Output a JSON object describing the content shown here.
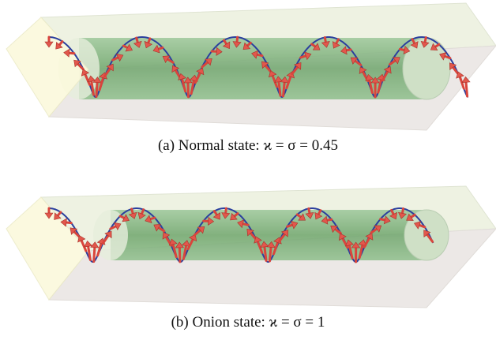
{
  "figures": [
    {
      "caption": "(a) Normal state: ϰ = σ = 0.45"
    },
    {
      "caption": "(b) Onion state: ϰ = σ = 1"
    }
  ]
}
